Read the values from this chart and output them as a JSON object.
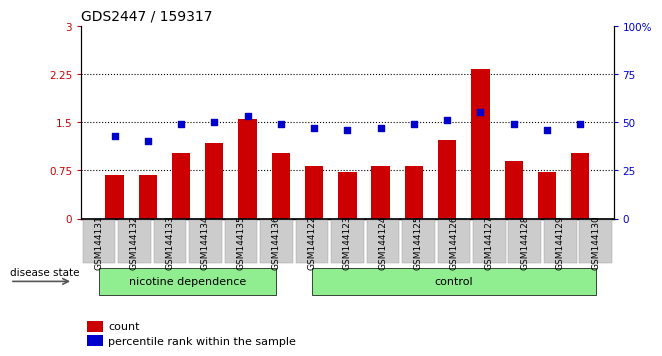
{
  "title": "GDS2447 / 159317",
  "categories": [
    "GSM144131",
    "GSM144132",
    "GSM144133",
    "GSM144134",
    "GSM144135",
    "GSM144136",
    "GSM144122",
    "GSM144123",
    "GSM144124",
    "GSM144125",
    "GSM144126",
    "GSM144127",
    "GSM144128",
    "GSM144129",
    "GSM144130"
  ],
  "bar_values": [
    0.68,
    0.68,
    1.02,
    1.18,
    1.55,
    1.02,
    0.82,
    0.72,
    0.82,
    0.82,
    1.22,
    2.32,
    0.9,
    0.72,
    1.02
  ],
  "dot_percentile": [
    43,
    40,
    49,
    50,
    53,
    49,
    47,
    46,
    47,
    49,
    51,
    55,
    49,
    46,
    49
  ],
  "nicotine_count": 6,
  "control_count": 9,
  "bar_color": "#cc0000",
  "dot_color": "#0000cc",
  "left_ylim": [
    0,
    3
  ],
  "right_ylim": [
    0,
    100
  ],
  "left_yticks": [
    0,
    0.75,
    1.5,
    2.25,
    3
  ],
  "right_yticks": [
    0,
    25,
    50,
    75,
    100
  ],
  "left_ytick_labels": [
    "0",
    "0.75",
    "1.5",
    "2.25",
    "3"
  ],
  "right_ytick_labels": [
    "0",
    "25",
    "50",
    "75",
    "100%"
  ],
  "dotted_lines": [
    0.75,
    1.5,
    2.25
  ],
  "nicotine_color": "#90EE90",
  "control_color": "#90EE90",
  "title_fontsize": 10,
  "label_fontsize": 8,
  "tick_fontsize": 7.5
}
